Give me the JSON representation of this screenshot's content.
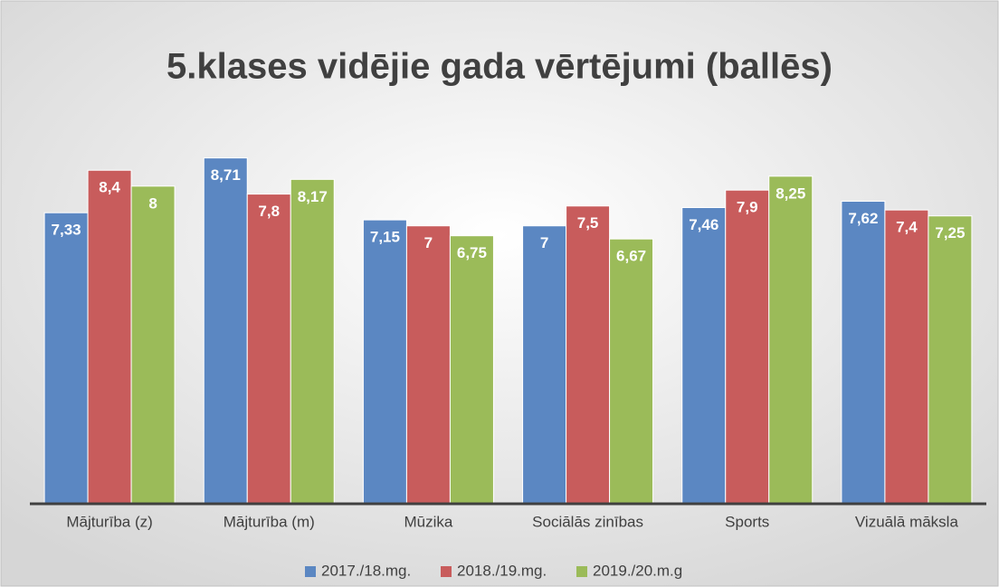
{
  "chart_data": {
    "type": "bar",
    "title": "5.klases vidējie gada vērtējumi (ballēs)",
    "categories": [
      "Mājturība (z)",
      "Mājturība (m)",
      "Mūzika",
      "Sociālās zinības",
      "Sports",
      "Vizuālā māksla"
    ],
    "series": [
      {
        "name": "2017./18.mg.",
        "color": "#5b87c2",
        "values": [
          7.33,
          8.71,
          7.15,
          7,
          7.46,
          7.62
        ],
        "value_labels": [
          "7,33",
          "8,71",
          "7,15",
          "7",
          "7,46",
          "7,62"
        ]
      },
      {
        "name": "2018./19.mg.",
        "color": "#c85c5c",
        "values": [
          8.4,
          7.8,
          7,
          7.5,
          7.9,
          7.4
        ],
        "value_labels": [
          "8,4",
          "7,8",
          "7",
          "7,5",
          "7,9",
          "7,4"
        ]
      },
      {
        "name": "2019./20.m.g",
        "color": "#9bbb59",
        "values": [
          8,
          8.17,
          6.75,
          6.67,
          8.25,
          7.25
        ],
        "value_labels": [
          "8",
          "8,17",
          "6,75",
          "6,67",
          "8,25",
          "7,25"
        ]
      }
    ],
    "ylim": [
      0,
      10
    ],
    "legend": "bottom"
  }
}
